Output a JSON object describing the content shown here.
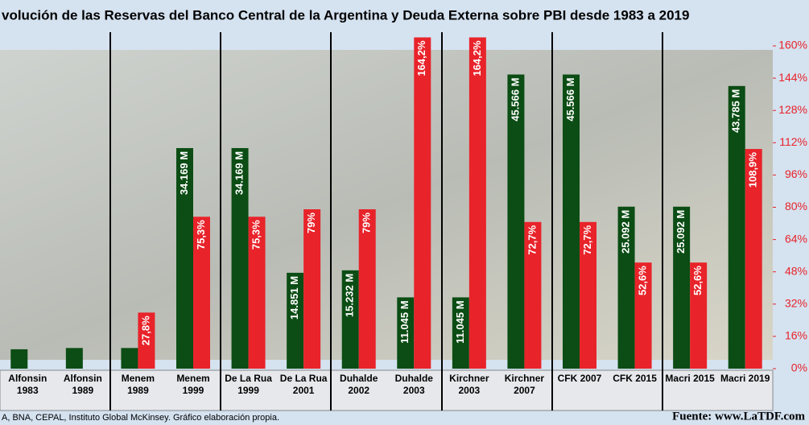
{
  "chart_data": {
    "type": "bar",
    "title": "volución de las Reservas del Banco Central de la Argentina y Deuda Externa sobre PBI desde 1983 a 2019",
    "categories": [
      "Alfonsin 1983",
      "Alfonsin 1989",
      "Menem 1989",
      "Menem 1999",
      "De La Rua 1999",
      "De La Rua 2001",
      "Duhalde 2002",
      "Duhalde 2003",
      "Kirchner 2003",
      "Kirchner 2007",
      "CFK 2007",
      "CFK 2015",
      "Macri 2015",
      "Macri 2019"
    ],
    "series": [
      {
        "color": "#0b4d14",
        "values": [
          3.0,
          3.2,
          3.2,
          34.169,
          34.169,
          14.851,
          15.232,
          11.045,
          11.045,
          45.566,
          45.566,
          25.092,
          25.092,
          43.785
        ],
        "value_labels": [
          null,
          null,
          null,
          "34.169 M",
          "34.169 M",
          "14.851 M",
          "15.232 M",
          "11.045 M",
          "11.045 M",
          "45.566 M",
          "45.566 M",
          "25.092 M",
          "25.092 M",
          "43.785 M"
        ]
      },
      {
        "color": "#e8232a",
        "axis": "y2",
        "values": [
          null,
          null,
          27.8,
          75.3,
          75.3,
          79,
          79,
          164.2,
          164.2,
          72.7,
          72.7,
          52.6,
          52.6,
          108.9
        ],
        "value_labels": [
          null,
          null,
          "27,8%",
          "75,3%",
          "75,3%",
          "79%",
          "79%",
          "164,2%",
          "164,2%",
          "72,7%",
          "72,7%",
          "52,6%",
          "52,6%",
          "108,9%"
        ]
      }
    ],
    "ylim": [
      0,
      50
    ],
    "y2lim": [
      0,
      160
    ],
    "y2ticks": [
      {
        "value": 0,
        "label": "0%"
      },
      {
        "value": 16,
        "label": "16%"
      },
      {
        "value": 32,
        "label": "32%"
      },
      {
        "value": 48,
        "label": "48%"
      },
      {
        "value": 64,
        "label": "64%"
      },
      {
        "value": 80,
        "label": "80%"
      },
      {
        "value": 96,
        "label": "96%"
      },
      {
        "value": 112,
        "label": "112%"
      },
      {
        "value": 128,
        "label": "128%"
      },
      {
        "value": 144,
        "label": "144%"
      },
      {
        "value": 160,
        "label": "160%"
      }
    ],
    "source": "A, BNA, CEPAL, Instituto Global McKinsey. Gráfico elaboración propia.",
    "credit": "Fuente: www.LaTDF.com"
  }
}
